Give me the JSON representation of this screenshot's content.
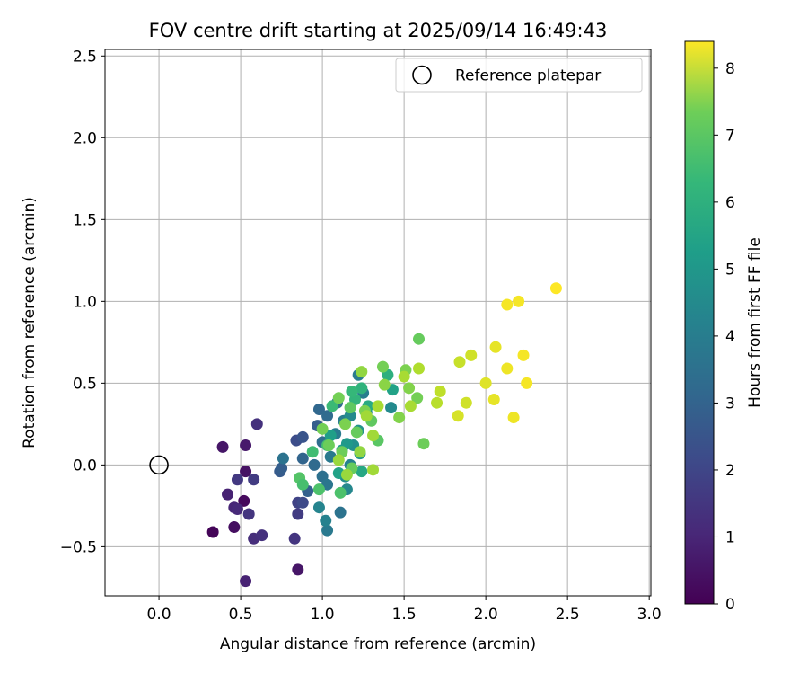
{
  "chart_data": {
    "type": "scatter",
    "title": "FOV centre drift starting at 2025/09/14 16:49:43",
    "xlabel": "Angular distance from reference (arcmin)",
    "ylabel": "Rotation from reference (arcmin)",
    "xlim": [
      -0.33,
      3.01
    ],
    "ylim": [
      -0.8,
      2.54
    ],
    "x_ticks": [
      0.0,
      0.5,
      1.0,
      1.5,
      2.0,
      2.5,
      3.0
    ],
    "x_tick_labels": [
      "0.0",
      "0.5",
      "1.0",
      "1.5",
      "2.0",
      "2.5",
      "3.0"
    ],
    "y_ticks": [
      -0.5,
      0.0,
      0.5,
      1.0,
      1.5,
      2.0,
      2.5
    ],
    "y_tick_labels": [
      "−0.5",
      "0.0",
      "0.5",
      "1.0",
      "1.5",
      "2.0",
      "2.5"
    ],
    "grid": true,
    "legend": {
      "placement": "top-right",
      "entries": [
        "Reference platepar"
      ]
    },
    "reference_point": {
      "x": 0.0,
      "y": 0.0,
      "label": "Reference platepar"
    },
    "colorbar": {
      "label": "Hours from first FF file",
      "range": [
        0,
        8.4
      ],
      "ticks": [
        0,
        1,
        2,
        3,
        4,
        5,
        6,
        7,
        8
      ],
      "tick_labels": [
        "0",
        "1",
        "2",
        "3",
        "4",
        "5",
        "6",
        "7",
        "8"
      ],
      "colormap": "viridis"
    },
    "points": [
      {
        "x": 0.33,
        "y": -0.41,
        "t": 0.1
      },
      {
        "x": 0.52,
        "y": -0.22,
        "t": 0.2
      },
      {
        "x": 0.46,
        "y": -0.38,
        "t": 0.3
      },
      {
        "x": 0.53,
        "y": -0.04,
        "t": 0.4
      },
      {
        "x": 0.39,
        "y": 0.11,
        "t": 0.5
      },
      {
        "x": 0.53,
        "y": 0.12,
        "t": 0.6
      },
      {
        "x": 0.42,
        "y": -0.18,
        "t": 0.8
      },
      {
        "x": 0.46,
        "y": -0.26,
        "t": 0.9
      },
      {
        "x": 0.53,
        "y": -0.71,
        "t": 0.8
      },
      {
        "x": 0.85,
        "y": -0.64,
        "t": 0.5
      },
      {
        "x": 0.48,
        "y": -0.27,
        "t": 1.0
      },
      {
        "x": 0.58,
        "y": -0.45,
        "t": 1.1
      },
      {
        "x": 0.63,
        "y": -0.43,
        "t": 1.2
      },
      {
        "x": 0.55,
        "y": -0.3,
        "t": 1.3
      },
      {
        "x": 0.48,
        "y": -0.09,
        "t": 1.4
      },
      {
        "x": 0.58,
        "y": -0.09,
        "t": 1.5
      },
      {
        "x": 0.6,
        "y": 0.25,
        "t": 1.2
      },
      {
        "x": 0.83,
        "y": -0.45,
        "t": 1.3
      },
      {
        "x": 0.85,
        "y": -0.3,
        "t": 1.5
      },
      {
        "x": 0.85,
        "y": -0.23,
        "t": 1.7
      },
      {
        "x": 0.88,
        "y": -0.23,
        "t": 1.9
      },
      {
        "x": 0.84,
        "y": 0.15,
        "t": 2.0
      },
      {
        "x": 0.88,
        "y": 0.17,
        "t": 2.2
      },
      {
        "x": 0.74,
        "y": -0.04,
        "t": 2.4
      },
      {
        "x": 0.75,
        "y": -0.02,
        "t": 2.5
      },
      {
        "x": 0.76,
        "y": 0.04,
        "t": 3.2
      },
      {
        "x": 0.91,
        "y": -0.16,
        "t": 2.6
      },
      {
        "x": 0.88,
        "y": 0.04,
        "t": 2.7
      },
      {
        "x": 0.95,
        "y": 0.0,
        "t": 2.9
      },
      {
        "x": 0.97,
        "y": 0.24,
        "t": 2.5
      },
      {
        "x": 0.98,
        "y": 0.34,
        "t": 2.8
      },
      {
        "x": 1.03,
        "y": 0.3,
        "t": 2.9
      },
      {
        "x": 1.0,
        "y": 0.14,
        "t": 3.0
      },
      {
        "x": 1.0,
        "y": -0.07,
        "t": 3.1
      },
      {
        "x": 1.03,
        "y": -0.12,
        "t": 3.3
      },
      {
        "x": 1.05,
        "y": 0.05,
        "t": 3.4
      },
      {
        "x": 1.08,
        "y": 0.19,
        "t": 3.5
      },
      {
        "x": 1.09,
        "y": 0.38,
        "t": 3.0
      },
      {
        "x": 1.11,
        "y": -0.29,
        "t": 3.2
      },
      {
        "x": 1.03,
        "y": -0.4,
        "t": 3.4
      },
      {
        "x": 1.02,
        "y": -0.34,
        "t": 3.7
      },
      {
        "x": 0.98,
        "y": -0.26,
        "t": 3.8
      },
      {
        "x": 1.13,
        "y": 0.27,
        "t": 3.6
      },
      {
        "x": 1.17,
        "y": 0.0,
        "t": 3.7
      },
      {
        "x": 1.15,
        "y": -0.15,
        "t": 3.9
      },
      {
        "x": 1.14,
        "y": -0.07,
        "t": 4.1
      },
      {
        "x": 1.19,
        "y": 0.12,
        "t": 4.2
      },
      {
        "x": 1.22,
        "y": 0.21,
        "t": 4.3
      },
      {
        "x": 1.22,
        "y": 0.55,
        "t": 3.5
      },
      {
        "x": 1.25,
        "y": 0.44,
        "t": 3.6
      },
      {
        "x": 1.27,
        "y": 0.32,
        "t": 3.8
      },
      {
        "x": 1.17,
        "y": 0.3,
        "t": 4.0
      },
      {
        "x": 1.23,
        "y": 0.07,
        "t": 4.4
      },
      {
        "x": 1.15,
        "y": 0.13,
        "t": 4.5
      },
      {
        "x": 1.12,
        "y": 0.09,
        "t": 4.6
      },
      {
        "x": 1.05,
        "y": 0.18,
        "t": 4.7
      },
      {
        "x": 1.1,
        "y": -0.05,
        "t": 4.8
      },
      {
        "x": 1.24,
        "y": -0.04,
        "t": 5.0
      },
      {
        "x": 1.28,
        "y": 0.36,
        "t": 5.1
      },
      {
        "x": 1.42,
        "y": 0.35,
        "t": 4.0
      },
      {
        "x": 1.43,
        "y": 0.46,
        "t": 4.8
      },
      {
        "x": 1.4,
        "y": 0.55,
        "t": 5.3
      },
      {
        "x": 1.24,
        "y": 0.47,
        "t": 5.4
      },
      {
        "x": 1.2,
        "y": 0.4,
        "t": 5.5
      },
      {
        "x": 1.18,
        "y": 0.45,
        "t": 5.6
      },
      {
        "x": 1.06,
        "y": 0.36,
        "t": 5.7
      },
      {
        "x": 0.94,
        "y": 0.08,
        "t": 5.8
      },
      {
        "x": 1.03,
        "y": 0.12,
        "t": 5.9
      },
      {
        "x": 1.11,
        "y": -0.17,
        "t": 6.0
      },
      {
        "x": 0.98,
        "y": -0.15,
        "t": 6.0
      },
      {
        "x": 0.86,
        "y": -0.08,
        "t": 6.1
      },
      {
        "x": 0.88,
        "y": -0.12,
        "t": 5.9
      },
      {
        "x": 1.34,
        "y": 0.15,
        "t": 6.2
      },
      {
        "x": 1.3,
        "y": 0.27,
        "t": 6.3
      },
      {
        "x": 1.17,
        "y": 0.35,
        "t": 6.3
      },
      {
        "x": 1.21,
        "y": 0.2,
        "t": 6.4
      },
      {
        "x": 1.18,
        "y": -0.02,
        "t": 6.4
      },
      {
        "x": 1.12,
        "y": 0.08,
        "t": 6.5
      },
      {
        "x": 1.04,
        "y": 0.12,
        "t": 6.5
      },
      {
        "x": 1.0,
        "y": 0.22,
        "t": 6.6
      },
      {
        "x": 1.1,
        "y": 0.41,
        "t": 6.6
      },
      {
        "x": 1.14,
        "y": 0.25,
        "t": 6.7
      },
      {
        "x": 1.26,
        "y": 0.33,
        "t": 6.7
      },
      {
        "x": 1.37,
        "y": 0.6,
        "t": 6.6
      },
      {
        "x": 1.51,
        "y": 0.58,
        "t": 6.7
      },
      {
        "x": 1.58,
        "y": 0.41,
        "t": 6.6
      },
      {
        "x": 1.59,
        "y": 0.77,
        "t": 6.4
      },
      {
        "x": 1.62,
        "y": 0.13,
        "t": 6.5
      },
      {
        "x": 1.47,
        "y": 0.29,
        "t": 6.8
      },
      {
        "x": 1.53,
        "y": 0.47,
        "t": 6.8
      },
      {
        "x": 1.38,
        "y": 0.49,
        "t": 6.9
      },
      {
        "x": 1.24,
        "y": 0.57,
        "t": 7.0
      },
      {
        "x": 1.23,
        "y": 0.08,
        "t": 7.0
      },
      {
        "x": 1.15,
        "y": -0.06,
        "t": 7.1
      },
      {
        "x": 1.1,
        "y": 0.03,
        "t": 7.1
      },
      {
        "x": 1.27,
        "y": 0.3,
        "t": 7.2
      },
      {
        "x": 1.31,
        "y": 0.18,
        "t": 7.2
      },
      {
        "x": 1.31,
        "y": -0.03,
        "t": 7.2
      },
      {
        "x": 1.34,
        "y": 0.36,
        "t": 7.3
      },
      {
        "x": 1.5,
        "y": 0.54,
        "t": 7.3
      },
      {
        "x": 1.54,
        "y": 0.36,
        "t": 7.3
      },
      {
        "x": 1.59,
        "y": 0.59,
        "t": 7.4
      },
      {
        "x": 1.7,
        "y": 0.38,
        "t": 7.5
      },
      {
        "x": 1.72,
        "y": 0.45,
        "t": 7.6
      },
      {
        "x": 1.84,
        "y": 0.63,
        "t": 7.7
      },
      {
        "x": 1.91,
        "y": 0.67,
        "t": 7.8
      },
      {
        "x": 1.88,
        "y": 0.38,
        "t": 7.8
      },
      {
        "x": 1.83,
        "y": 0.3,
        "t": 7.9
      },
      {
        "x": 2.0,
        "y": 0.5,
        "t": 8.0
      },
      {
        "x": 2.06,
        "y": 0.72,
        "t": 8.1
      },
      {
        "x": 2.05,
        "y": 0.4,
        "t": 8.1
      },
      {
        "x": 2.13,
        "y": 0.59,
        "t": 8.2
      },
      {
        "x": 2.17,
        "y": 0.29,
        "t": 8.2
      },
      {
        "x": 2.13,
        "y": 0.98,
        "t": 8.3
      },
      {
        "x": 2.2,
        "y": 1.0,
        "t": 8.3
      },
      {
        "x": 2.23,
        "y": 0.67,
        "t": 8.3
      },
      {
        "x": 2.25,
        "y": 0.5,
        "t": 8.3
      },
      {
        "x": 2.43,
        "y": 1.08,
        "t": 8.4
      }
    ]
  }
}
